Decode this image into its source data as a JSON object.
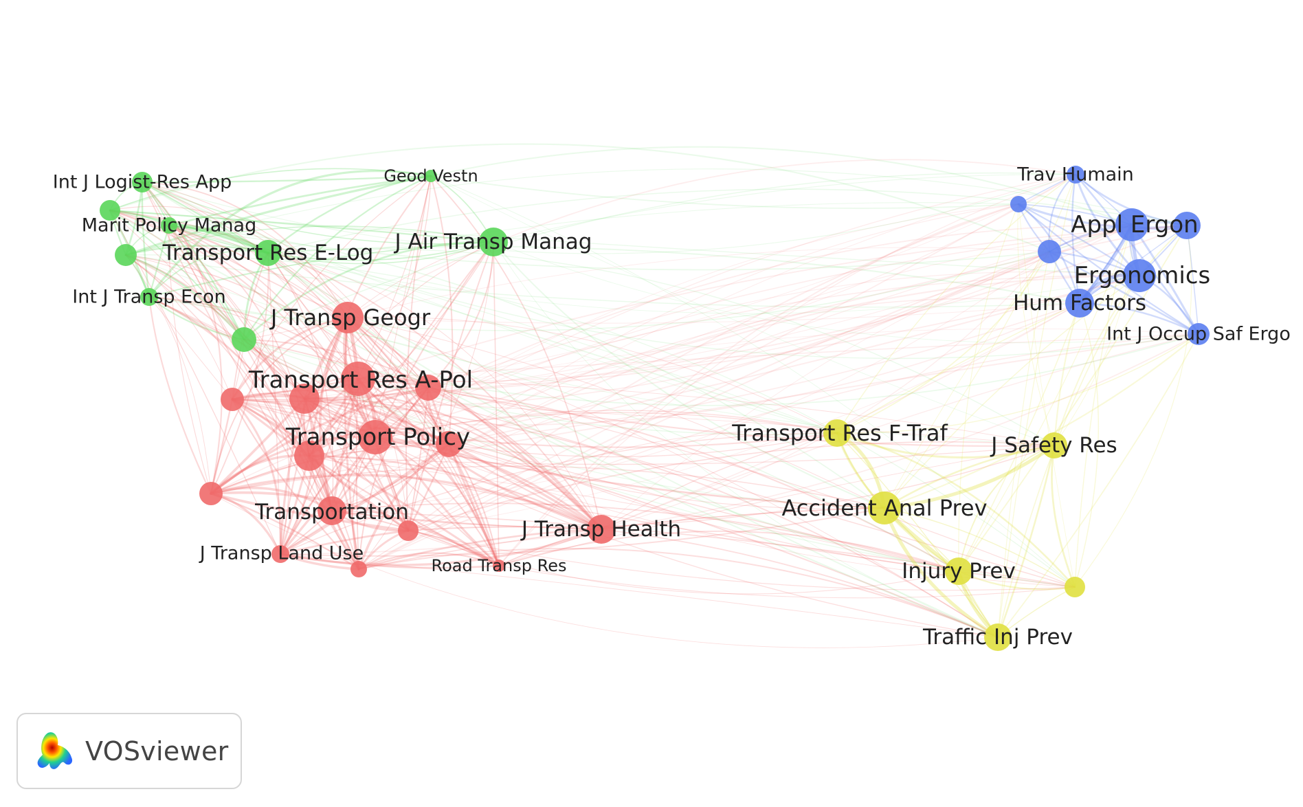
{
  "colors": {
    "red": "#f06a6a",
    "green": "#5ad65a",
    "blue": "#5b7ef0",
    "yellow": "#e0e040",
    "label": "#222222"
  },
  "nodes": [
    {
      "id": "int-j-logist-res-app",
      "label": "Int J Logist-Res App",
      "cluster": "green"
    },
    {
      "id": "geod-vestn",
      "label": "Geod Vestn",
      "cluster": "green"
    },
    {
      "id": "marit-policy-manag",
      "label": "Marit Policy Manag",
      "cluster": "green"
    },
    {
      "id": "transport-res-e-log",
      "label": "Transport Res E-Log",
      "cluster": "green"
    },
    {
      "id": "j-air-transp-manag",
      "label": "J Air Transp Manag",
      "cluster": "green"
    },
    {
      "id": "int-j-transp-econ",
      "label": "Int J Transp Econ",
      "cluster": "green"
    },
    {
      "id": "green-unlabeled-1",
      "label": "",
      "cluster": "green"
    },
    {
      "id": "green-unlabeled-2",
      "label": "",
      "cluster": "green"
    },
    {
      "id": "green-unlabeled-3",
      "label": "",
      "cluster": "green"
    },
    {
      "id": "j-transp-geogr",
      "label": "J Transp Geogr",
      "cluster": "red"
    },
    {
      "id": "transport-res-a-pol",
      "label": "Transport Res A-Pol",
      "cluster": "red"
    },
    {
      "id": "transport-policy",
      "label": "Transport Policy",
      "cluster": "red"
    },
    {
      "id": "transportation",
      "label": "Transportation",
      "cluster": "red"
    },
    {
      "id": "j-transp-land-use",
      "label": "J Transp Land Use",
      "cluster": "red"
    },
    {
      "id": "road-transp-res",
      "label": "Road Transp Res",
      "cluster": "red"
    },
    {
      "id": "j-transp-health",
      "label": "J Transp Health",
      "cluster": "red"
    },
    {
      "id": "red-unlabeled-1",
      "label": "",
      "cluster": "red"
    },
    {
      "id": "red-unlabeled-2",
      "label": "",
      "cluster": "red"
    },
    {
      "id": "red-unlabeled-3",
      "label": "",
      "cluster": "red"
    },
    {
      "id": "red-unlabeled-4",
      "label": "",
      "cluster": "red"
    },
    {
      "id": "red-unlabeled-5",
      "label": "",
      "cluster": "red"
    },
    {
      "id": "red-unlabeled-6",
      "label": "",
      "cluster": "red"
    },
    {
      "id": "red-unlabeled-7",
      "label": "",
      "cluster": "red"
    },
    {
      "id": "red-unlabeled-8",
      "label": "",
      "cluster": "red"
    },
    {
      "id": "trav-humain",
      "label": "Trav Humain",
      "cluster": "blue"
    },
    {
      "id": "appl-ergon",
      "label": "Appl Ergon",
      "cluster": "blue"
    },
    {
      "id": "ergonomics",
      "label": "Ergonomics",
      "cluster": "blue"
    },
    {
      "id": "hum-factors",
      "label": "Hum Factors",
      "cluster": "blue"
    },
    {
      "id": "int-j-occup-saf-ergo",
      "label": "Int J Occup Saf Ergo",
      "cluster": "blue"
    },
    {
      "id": "blue-unlabeled-1",
      "label": "",
      "cluster": "blue"
    },
    {
      "id": "blue-unlabeled-2",
      "label": "",
      "cluster": "blue"
    },
    {
      "id": "blue-unlabeled-3",
      "label": "",
      "cluster": "blue"
    },
    {
      "id": "transport-res-f-traf",
      "label": "Transport Res F-Traf",
      "cluster": "yellow"
    },
    {
      "id": "j-safety-res",
      "label": "J Safety Res",
      "cluster": "yellow"
    },
    {
      "id": "accident-anal-prev",
      "label": "Accident Anal Prev",
      "cluster": "yellow"
    },
    {
      "id": "injury-prev",
      "label": "Injury Prev",
      "cluster": "yellow"
    },
    {
      "id": "traffic-inj-prev",
      "label": "Traffic Inj Prev",
      "cluster": "yellow"
    },
    {
      "id": "yellow-unlabeled-1",
      "label": "",
      "cluster": "yellow"
    }
  ],
  "logo": {
    "text": "VOSviewer",
    "icon": "vosviewer-logo-icon"
  }
}
